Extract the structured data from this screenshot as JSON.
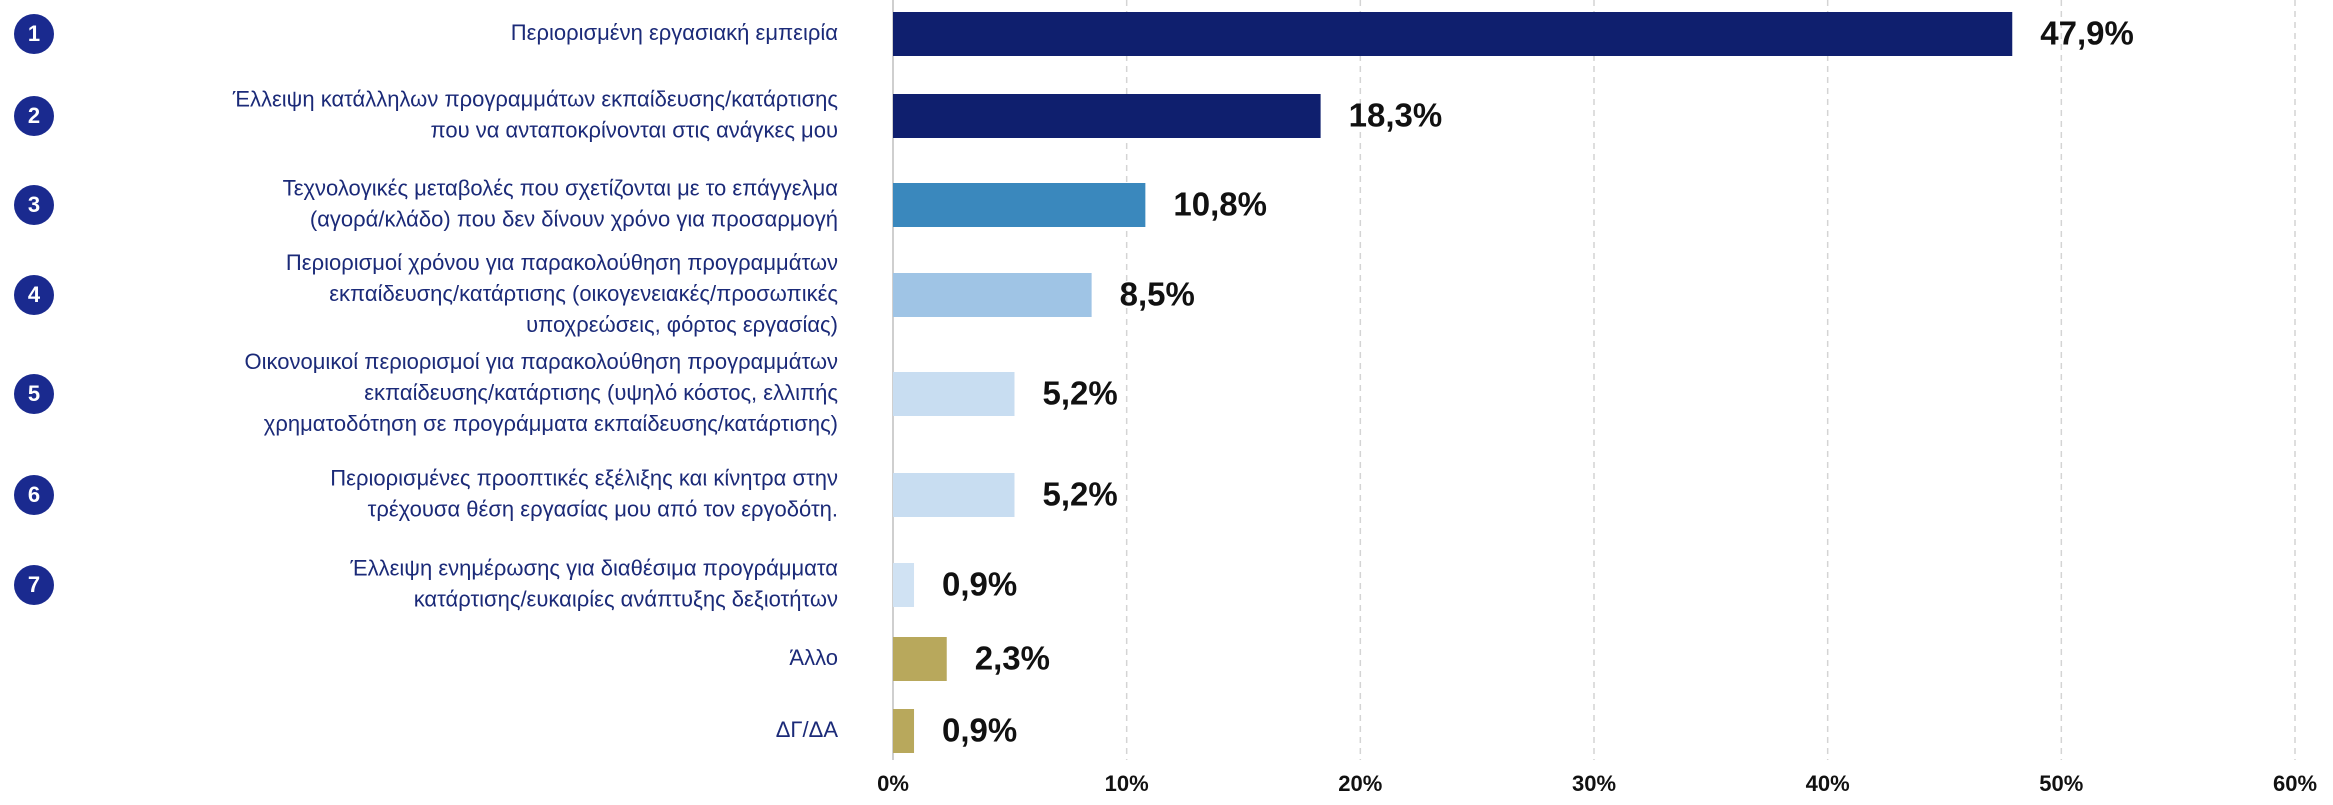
{
  "chart_data": {
    "type": "bar",
    "orientation": "horizontal",
    "categories": [
      [
        "Περιορισμένη εργασιακή εμπειρία"
      ],
      [
        "Έλλειψη κατάλληλων προγραμμάτων εκπαίδευσης/κατάρτισης",
        "που να ανταποκρίνονται στις ανάγκες μου"
      ],
      [
        "Τεχνολογικές μεταβολές που σχετίζονται με το επάγγελμα",
        "(αγορά/κλάδο) που δεν δίνουν χρόνο για προσαρμογή"
      ],
      [
        "Περιορισμοί χρόνου για παρακολούθηση προγραμμάτων",
        "εκπαίδευσης/κατάρτισης (οικογενειακές/προσωπικές",
        "υποχρεώσεις, φόρτος εργασίας)"
      ],
      [
        "Οικονομικοί περιορισμοί για παρακολούθηση προγραμμάτων",
        "εκπαίδευσης/κατάρτισης (υψηλό κόστος, ελλιπής",
        "χρηματοδότηση σε προγράμματα εκπαίδευσης/κατάρτισης)"
      ],
      [
        "Περιορισμένες προοπτικές εξέλιξης και κίνητρα στην",
        "τρέχουσα θέση εργασίας μου από τον εργοδότη."
      ],
      [
        "Έλλειψη ενημέρωσης για διαθέσιμα προγράμματα",
        "κατάρτισης/ευκαιρίες ανάπτυξης δεξιοτήτων"
      ],
      [
        "Άλλο"
      ],
      [
        "ΔΓ/ΔΑ"
      ]
    ],
    "badges": [
      1,
      2,
      3,
      4,
      5,
      6,
      7
    ],
    "values": [
      47.9,
      18.3,
      10.8,
      8.5,
      5.2,
      5.2,
      0.9,
      2.3,
      0.9
    ],
    "value_labels": [
      "47,9%",
      "18,3%",
      "10,8%",
      "8,5%",
      "5,2%",
      "5,2%",
      "0,9%",
      "2,3%",
      "0,9%"
    ],
    "colors": [
      "#0f1f6e",
      "#0f1f6e",
      "#3a88bd",
      "#9fc4e5",
      "#c8ddf1",
      "#c8ddf1",
      "#d0e2f3",
      "#b8a85c",
      "#b8a85c"
    ],
    "badge_color": "#1a2a8f",
    "xlim": [
      0,
      60
    ],
    "xticks": [
      {
        "value": 0,
        "label": "0%"
      },
      {
        "value": 10,
        "label": "10%"
      },
      {
        "value": 20,
        "label": "20%"
      },
      {
        "value": 30,
        "label": "30%"
      },
      {
        "value": 40,
        "label": "40%"
      },
      {
        "value": 50,
        "label": "50%"
      },
      {
        "value": 60,
        "label": "60%"
      }
    ],
    "grid": true
  }
}
